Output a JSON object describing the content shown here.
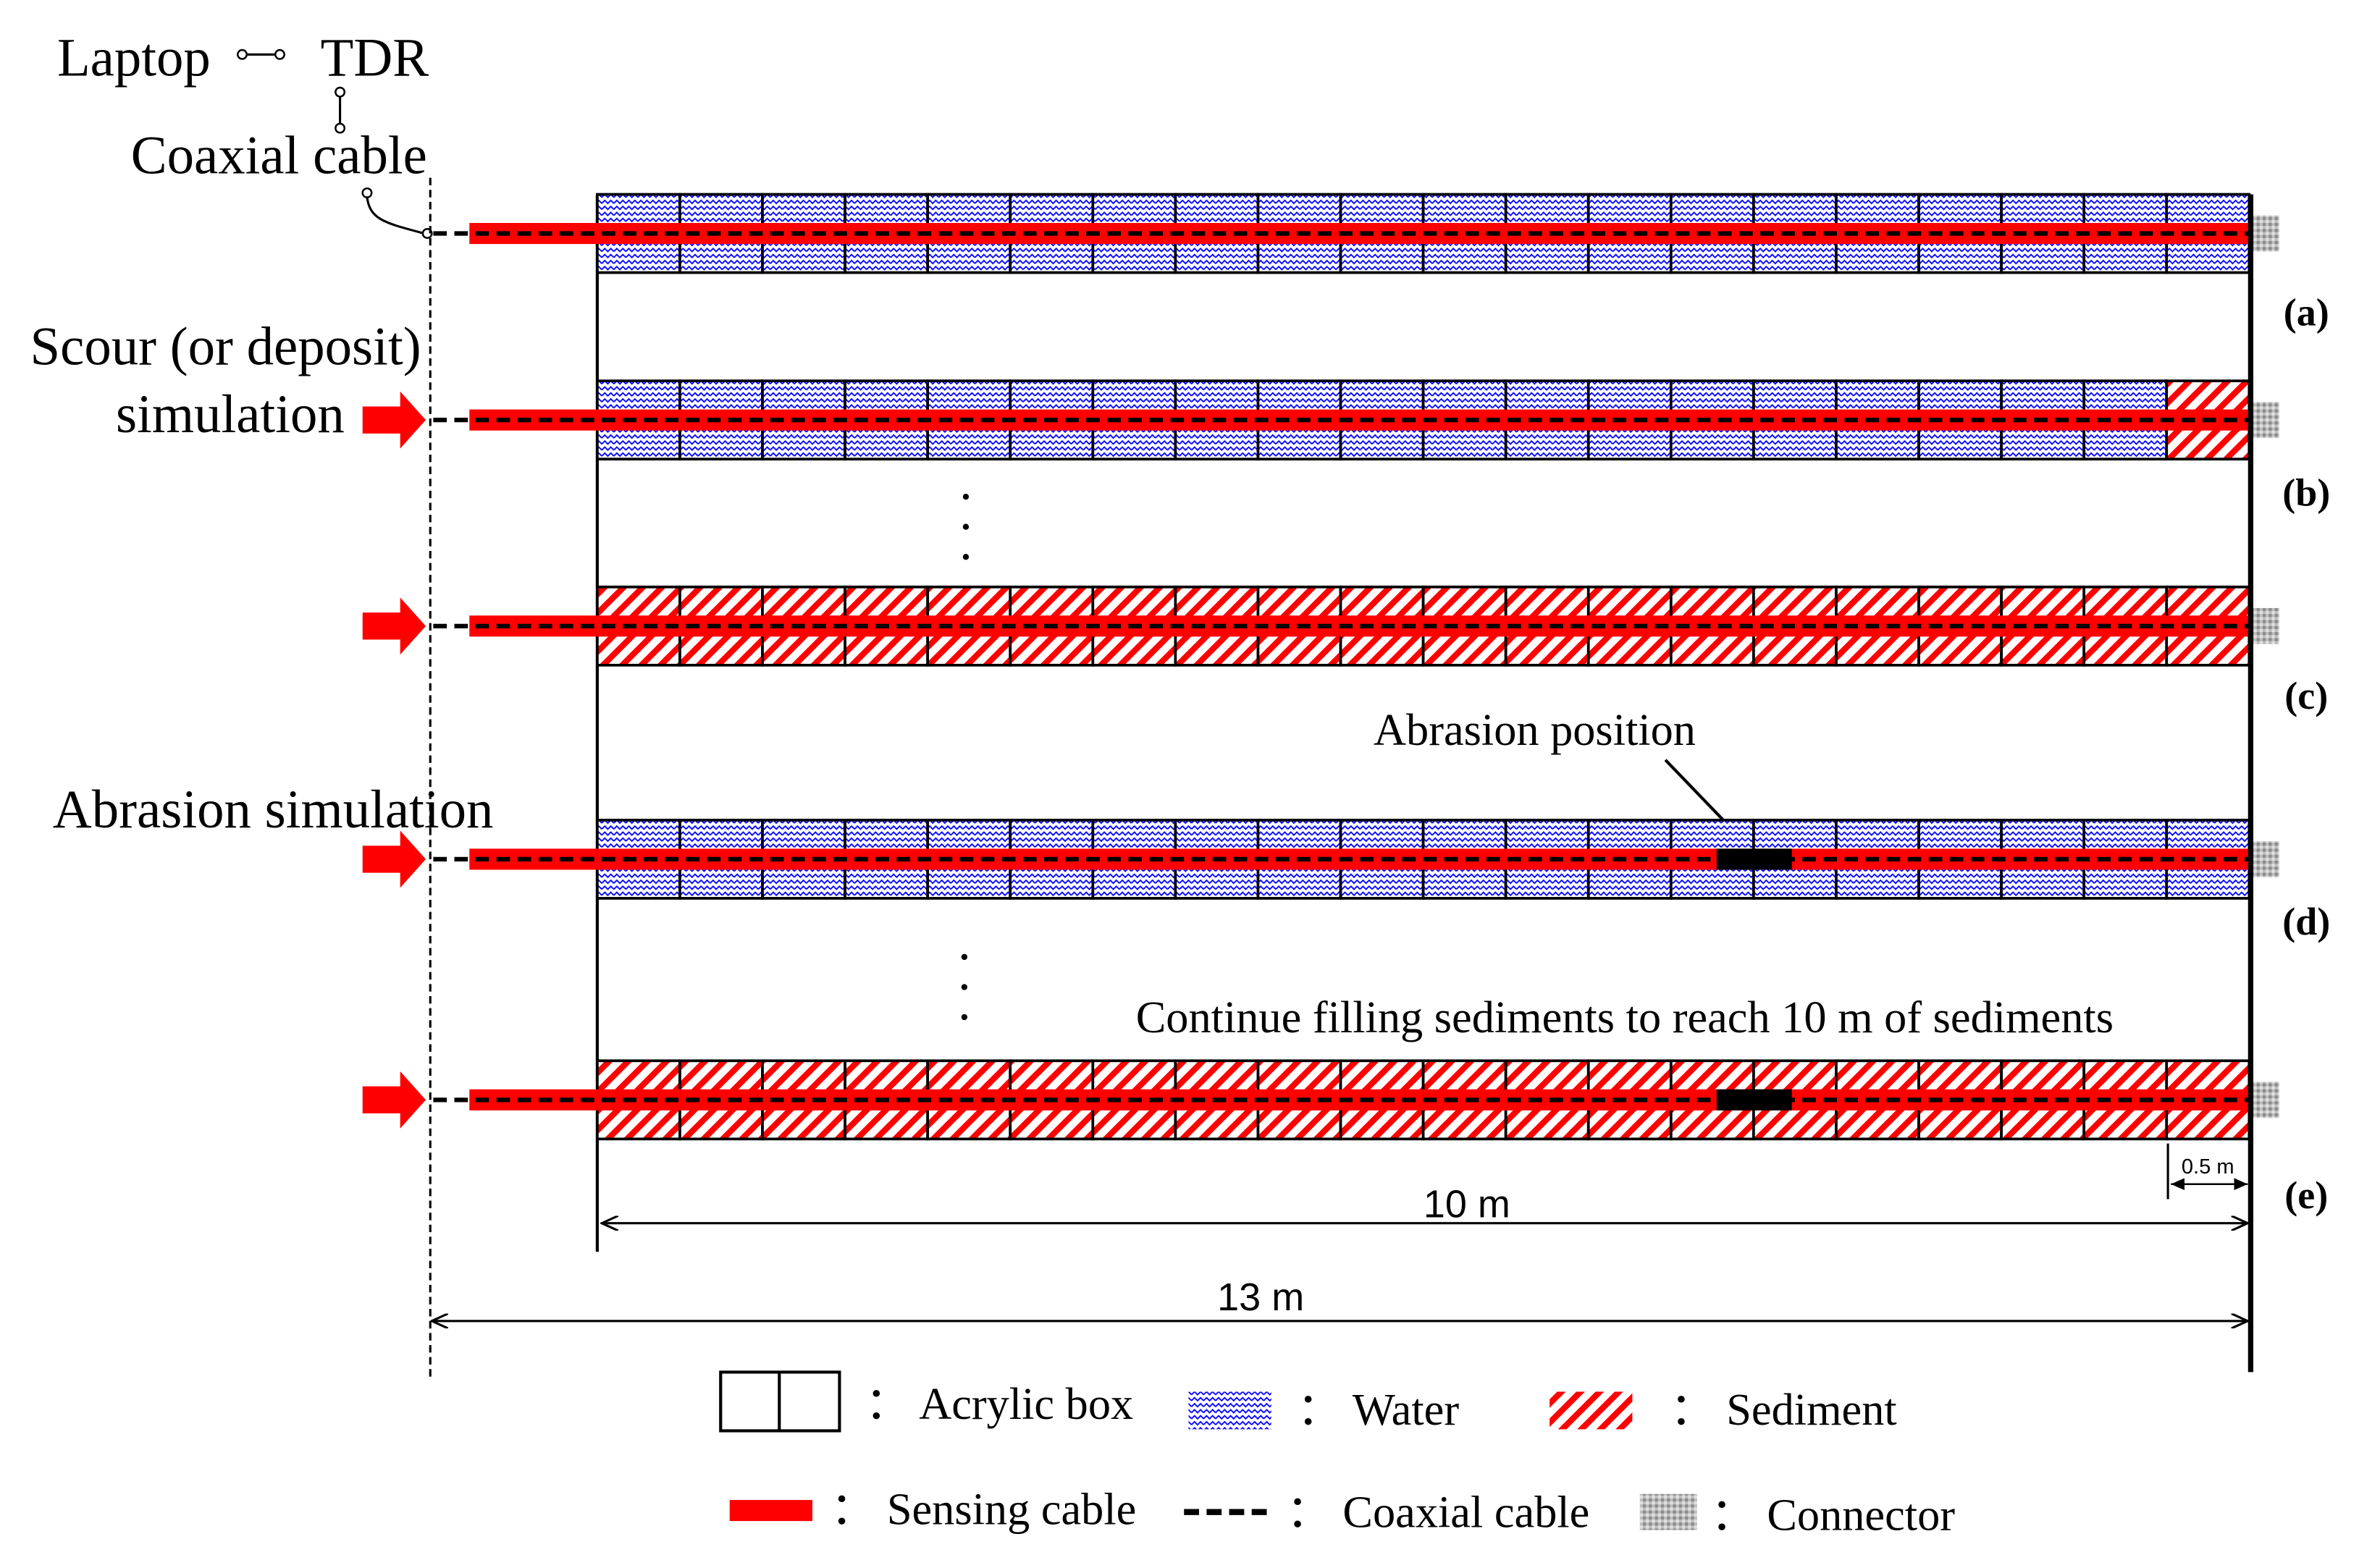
{
  "header": {
    "laptop": "Laptop",
    "tdr": "TDR",
    "coaxial_cable": "Coaxial cable"
  },
  "annotations": {
    "scour_line1": "Scour (or deposit)",
    "scour_line2": "simulation",
    "abrasion_sim": "Abrasion simulation",
    "abrasion_position": "Abrasion position",
    "continue_filling": "Continue filling sediments to reach 10 m of sediments"
  },
  "rows": [
    {
      "label": "(a)",
      "fill": "water",
      "last_box_fill": "water",
      "abrasion": false,
      "input_arrow": false
    },
    {
      "label": "(b)",
      "fill": "water",
      "last_box_fill": "sediment",
      "abrasion": false,
      "input_arrow": true
    },
    {
      "label": "(c)",
      "fill": "sediment",
      "last_box_fill": "sediment",
      "abrasion": false,
      "input_arrow": true
    },
    {
      "label": "(d)",
      "fill": "water",
      "last_box_fill": "water",
      "abrasion": true,
      "input_arrow": true
    },
    {
      "label": "(e)",
      "fill": "sediment",
      "last_box_fill": "sediment",
      "abrasion": true,
      "input_arrow": true
    }
  ],
  "boxes_per_row": 20,
  "dimensions": {
    "strip_length": "10 m",
    "total_length": "13 m",
    "box_length": "0.5 m"
  },
  "legend": {
    "acrylic_box": "： Acrylic box",
    "water": "： Water",
    "sediment": "： Sediment",
    "sensing_cable": "： Sensing cable",
    "coaxial_cable": "： Coaxial cable",
    "connector": "： Connector"
  },
  "colors": {
    "sensing_cable": "#ff0000",
    "water": "#0000ff",
    "sediment": "#ff0000",
    "connector": "#9a9a9a",
    "abrasion_block": "#000000"
  }
}
